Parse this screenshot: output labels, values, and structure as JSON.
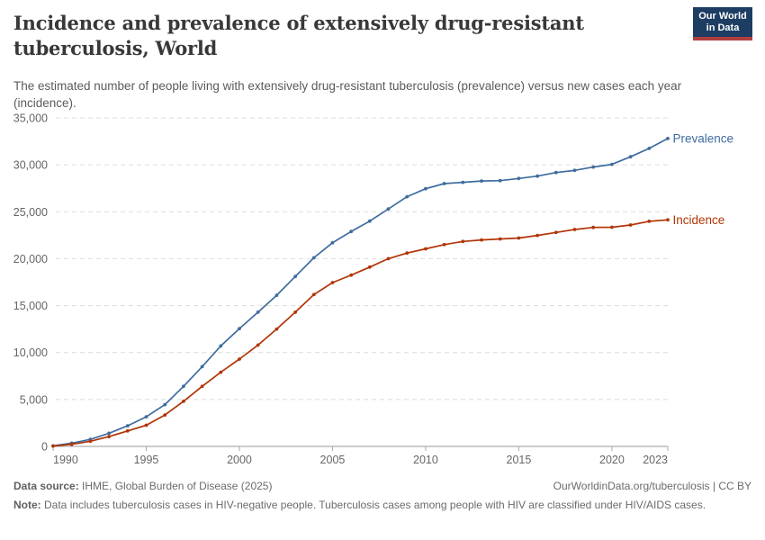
{
  "header": {
    "title": "Incidence and prevalence of extensively drug-resistant tuberculosis, World",
    "subtitle": "The estimated number of people living with extensively drug-resistant tuberculosis (prevalence) versus new cases each year (incidence)."
  },
  "logo": {
    "line1": "Our World",
    "line2": "in Data",
    "bg_color": "#1d3d63",
    "stripe_color": "#b13f3d"
  },
  "chart_data": {
    "type": "line",
    "x": [
      1990,
      1991,
      1992,
      1993,
      1994,
      1995,
      1996,
      1997,
      1998,
      1999,
      2000,
      2001,
      2002,
      2003,
      2004,
      2005,
      2006,
      2007,
      2008,
      2009,
      2010,
      2011,
      2012,
      2013,
      2014,
      2015,
      2016,
      2017,
      2018,
      2019,
      2020,
      2021,
      2022,
      2023
    ],
    "series": [
      {
        "name": "Prevalence",
        "color": "#3e6c9e",
        "values": [
          60,
          350,
          750,
          1400,
          2200,
          3150,
          4450,
          6400,
          8500,
          10700,
          12550,
          14300,
          16100,
          18100,
          20100,
          21700,
          22900,
          24000,
          25300,
          26600,
          27450,
          28000,
          28130,
          28280,
          28320,
          28550,
          28800,
          29180,
          29410,
          29760,
          30050,
          30860,
          31750,
          32800
        ]
      },
      {
        "name": "Incidence",
        "color": "#b13507",
        "values": [
          40,
          220,
          550,
          1050,
          1650,
          2250,
          3350,
          4800,
          6400,
          7900,
          9300,
          10800,
          12500,
          14300,
          16180,
          17450,
          18250,
          19100,
          20000,
          20600,
          21050,
          21500,
          21835,
          22000,
          22100,
          22200,
          22480,
          22790,
          23110,
          23330,
          23350,
          23590,
          23980,
          24140
        ]
      }
    ],
    "xlim": [
      1990,
      2023
    ],
    "ylim": [
      0,
      35000
    ],
    "xticks": [
      1990,
      1995,
      2000,
      2005,
      2010,
      2015,
      2020,
      2023
    ],
    "yticks": [
      0,
      5000,
      10000,
      15000,
      20000,
      25000,
      30000,
      35000
    ],
    "grid": "horizontal-dashed",
    "legend_position": "line-end-labels",
    "marker": "dot-every-year"
  },
  "footer": {
    "source_label": "Data source:",
    "source_text": " IHME, Global Burden of Disease (2025)",
    "attribution_link": "OurWorldinData.org/tuberculosis",
    "separator": " | ",
    "license": "CC BY",
    "note_label": "Note:",
    "note_text": " Data includes tuberculosis cases in HIV-negative people. Tuberculosis cases among people with HIV are classified under HIV/AIDS cases."
  }
}
